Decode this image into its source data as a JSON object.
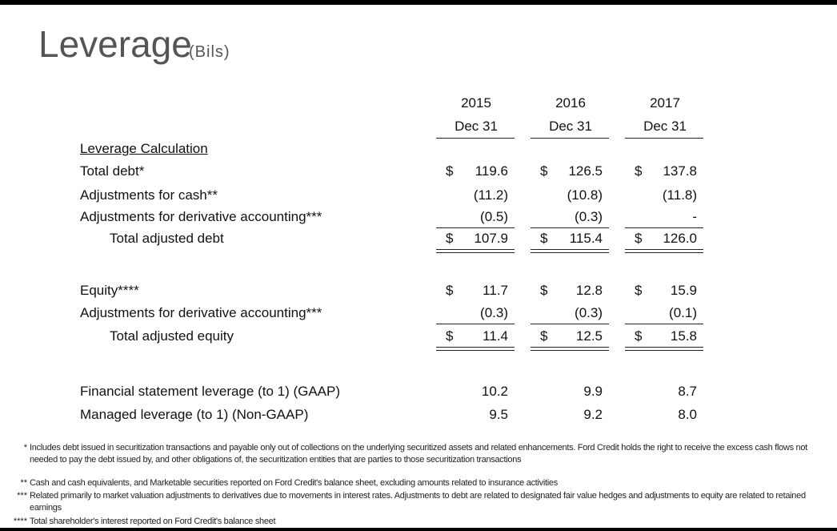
{
  "header": {
    "title": "Leverage",
    "subtitle": "(Bils)"
  },
  "table": {
    "columns": [
      {
        "year": "2015",
        "date": "Dec 31"
      },
      {
        "year": "2016",
        "date": "Dec 31"
      },
      {
        "year": "2017",
        "date": "Dec 31"
      }
    ],
    "section": "Leverage Calculation",
    "rows": [
      {
        "label": "Total debt*",
        "cells": [
          {
            "currency": "$",
            "amount": "119.6"
          },
          {
            "currency": "$",
            "amount": "126.5"
          },
          {
            "currency": "$",
            "amount": "137.8"
          }
        ]
      },
      {
        "label": "Adjustments for cash**",
        "cells": [
          {
            "amount": "(11.2)"
          },
          {
            "amount": "(10.8)"
          },
          {
            "amount": "(11.8)"
          }
        ]
      },
      {
        "label": "Adjustments for derivative accounting***",
        "cells": [
          {
            "amount": "(0.5)"
          },
          {
            "amount": "(0.3)"
          },
          {
            "amount": "-"
          }
        ]
      },
      {
        "label": "Total adjusted debt",
        "cells": [
          {
            "currency": "$",
            "amount": "107.9"
          },
          {
            "currency": "$",
            "amount": "115.4"
          },
          {
            "currency": "$",
            "amount": "126.0"
          }
        ]
      },
      {
        "label": "Equity****",
        "cells": [
          {
            "currency": "$",
            "amount": "11.7"
          },
          {
            "currency": "$",
            "amount": "12.8"
          },
          {
            "currency": "$",
            "amount": "15.9"
          }
        ]
      },
      {
        "label": "Adjustments for derivative accounting***",
        "cells": [
          {
            "amount": "(0.3)"
          },
          {
            "amount": "(0.3)"
          },
          {
            "amount": "(0.1)"
          }
        ]
      },
      {
        "label": "Total adjusted equity",
        "cells": [
          {
            "currency": "$",
            "amount": "11.4"
          },
          {
            "currency": "$",
            "amount": "12.5"
          },
          {
            "currency": "$",
            "amount": "15.8"
          }
        ]
      },
      {
        "label": "Financial statement leverage (to 1) (GAAP)",
        "cells": [
          {
            "amount": "10.2"
          },
          {
            "amount": "9.9"
          },
          {
            "amount": "8.7"
          }
        ]
      },
      {
        "label": "Managed leverage (to 1) (Non-GAAP)",
        "cells": [
          {
            "amount": "9.5"
          },
          {
            "amount": "9.2"
          },
          {
            "amount": "8.0"
          }
        ]
      }
    ]
  },
  "footnotes": [
    {
      "marker": "*",
      "text": "Includes debt issued in securitization transactions and payable only out of collections on the underlying securitized assets and related enhancements. Ford Credit holds the right to receive the excess cash flows not needed to pay the debt issued by, and other obligations of, the securitization entities that are parties to those securitization transactions"
    },
    {
      "marker": "**",
      "text": "Cash and cash equivalents, and Marketable securities reported on Ford Credit's balance sheet, excluding amounts related to insurance activities"
    },
    {
      "marker": "***",
      "text": "Related primarily to market valuation adjustments to derivatives due to movements in interest rates. Adjustments to debt are related to designated fair value hedges and adjustments to equity are related to retained earnings"
    },
    {
      "marker": "****",
      "text": "Total shareholder's interest reported on Ford Credit's balance sheet"
    }
  ]
}
